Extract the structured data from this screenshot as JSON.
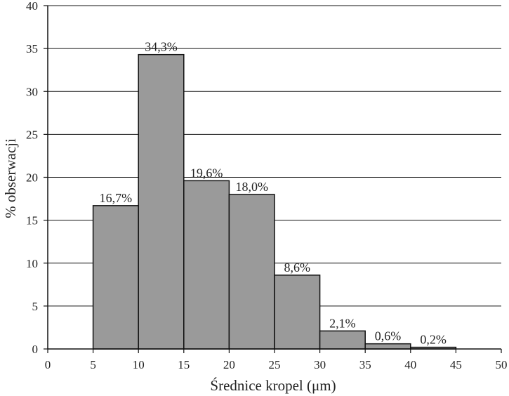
{
  "chart_data": {
    "type": "bar",
    "title": "",
    "xlabel": "Średnice kropel (μm)",
    "ylabel": "% obserwacji",
    "xlim": [
      0,
      50
    ],
    "ylim": [
      0,
      40
    ],
    "x_ticks": [
      "0",
      "5",
      "10",
      "15",
      "20",
      "25",
      "30",
      "35",
      "40",
      "45",
      "50"
    ],
    "y_ticks": [
      "0",
      "5",
      "10",
      "15",
      "20",
      "25",
      "30",
      "35",
      "40"
    ],
    "grid": "horizontal",
    "bins": [
      {
        "from": 5,
        "to": 10,
        "value": 16.7,
        "label": "16,7%"
      },
      {
        "from": 10,
        "to": 15,
        "value": 34.3,
        "label": "34,3%"
      },
      {
        "from": 15,
        "to": 20,
        "value": 19.6,
        "label": "19,6%"
      },
      {
        "from": 20,
        "to": 25,
        "value": 18.0,
        "label": "18,0%"
      },
      {
        "from": 25,
        "to": 30,
        "value": 8.6,
        "label": "8,6%"
      },
      {
        "from": 30,
        "to": 35,
        "value": 2.1,
        "label": "2,1%"
      },
      {
        "from": 35,
        "to": 40,
        "value": 0.6,
        "label": "0,6%"
      },
      {
        "from": 40,
        "to": 45,
        "value": 0.2,
        "label": "0,2%"
      }
    ],
    "bar_color": "#9a9a9a",
    "bar_stroke": "#111111"
  }
}
